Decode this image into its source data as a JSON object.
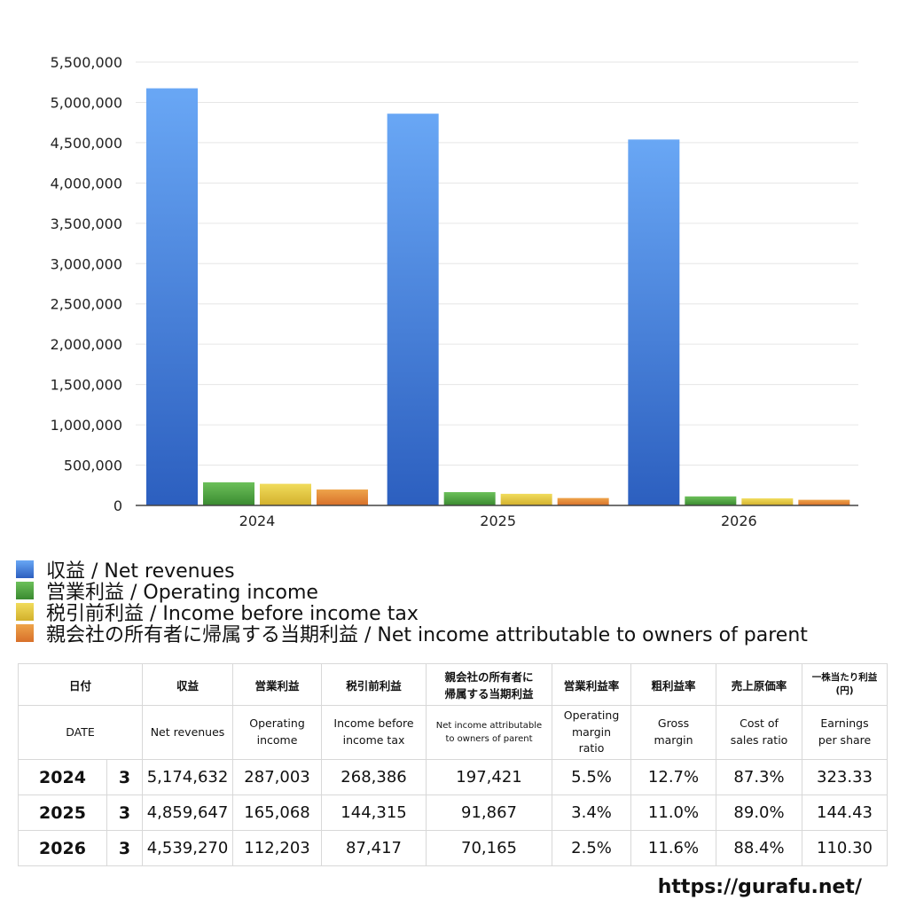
{
  "colors": {
    "series": [
      {
        "top": "#69a7f5",
        "bottom": "#2c5fbf"
      },
      {
        "top": "#6cc05a",
        "bottom": "#3a8a30"
      },
      {
        "top": "#f1dc5c",
        "bottom": "#d2b02c"
      },
      {
        "top": "#eea44a",
        "bottom": "#d8702a"
      }
    ],
    "grid": "#e6e6e6",
    "axis": "#444444"
  },
  "chart_data": {
    "type": "bar",
    "categories": [
      "2024",
      "2025",
      "2026"
    ],
    "series": [
      {
        "name": "収益 / Net revenues",
        "values": [
          5174632,
          4859647,
          4539270
        ]
      },
      {
        "name": "営業利益 / Operating income",
        "values": [
          287003,
          165068,
          112203
        ]
      },
      {
        "name": "税引前利益 / Income before income tax",
        "values": [
          268386,
          144315,
          87417
        ]
      },
      {
        "name": "親会社の所有者に帰属する当期利益 / Net income attributable to owners of parent",
        "values": [
          197421,
          91867,
          70165
        ]
      }
    ],
    "ylim": [
      0,
      5500000
    ],
    "yticks": [
      "0",
      "500,000",
      "1,000,000",
      "1,500,000",
      "2,000,000",
      "2,500,000",
      "3,000,000",
      "3,500,000",
      "4,000,000",
      "4,500,000",
      "5,000,000",
      "5,500,000"
    ],
    "grid": true,
    "legend": "bottom-left"
  },
  "table": {
    "header_jp": [
      "日付",
      "収益",
      "営業利益",
      "税引前利益",
      "親会社の所有者に",
      "帰属する当期利益",
      "営業利益率",
      "粗利益率",
      "売上原価率",
      "一株当たり利益",
      "(円)"
    ],
    "header_en": [
      "DATE",
      "Net revenues",
      "Operating",
      "income",
      "Income before",
      "income tax",
      "Net income attributable",
      "to owners of parent",
      "Operating",
      "margin",
      "ratio",
      "Gross",
      "margin",
      "Cost of",
      "sales ratio",
      "Earnings",
      "per share"
    ],
    "rows": [
      {
        "year": "2024",
        "month": "3",
        "revenues": "5,174,632",
        "op_income": "287,003",
        "pretax": "268,386",
        "net_income": "197,421",
        "op_margin": "5.5%",
        "gross_margin": "12.7%",
        "cost_ratio": "87.3%",
        "eps": "323.33"
      },
      {
        "year": "2025",
        "month": "3",
        "revenues": "4,859,647",
        "op_income": "165,068",
        "pretax": "144,315",
        "net_income": "91,867",
        "op_margin": "3.4%",
        "gross_margin": "11.0%",
        "cost_ratio": "89.0%",
        "eps": "144.43"
      },
      {
        "year": "2026",
        "month": "3",
        "revenues": "4,539,270",
        "op_income": "112,203",
        "pretax": "87,417",
        "net_income": "70,165",
        "op_margin": "2.5%",
        "gross_margin": "11.6%",
        "cost_ratio": "88.4%",
        "eps": "110.30"
      }
    ]
  },
  "footer": {
    "url": "https://gurafu.net/"
  }
}
